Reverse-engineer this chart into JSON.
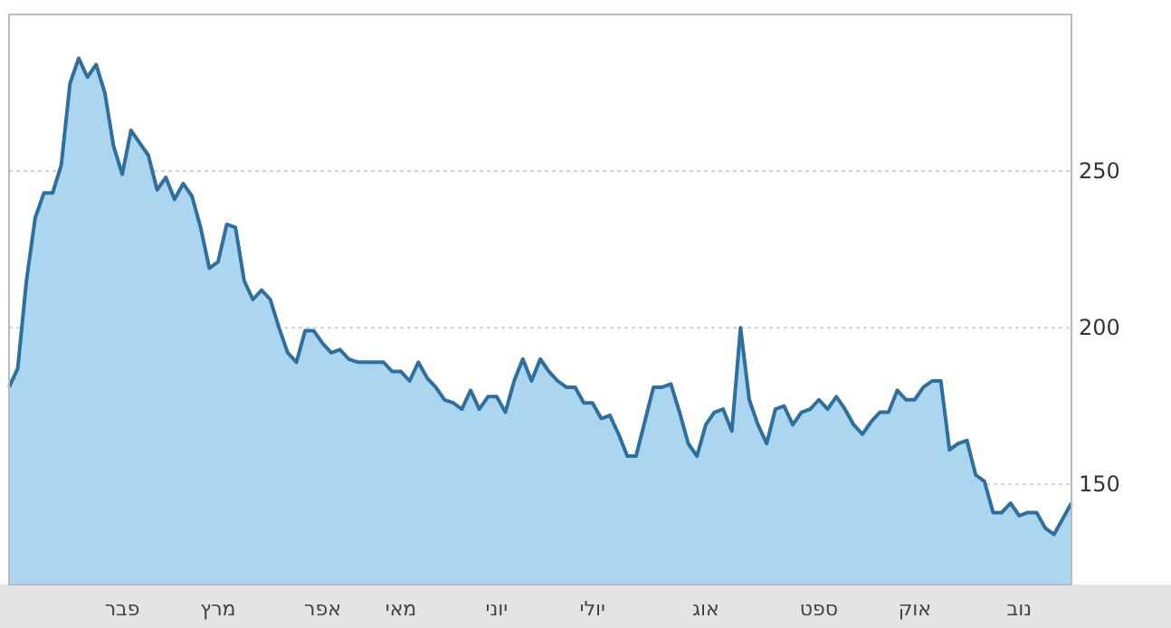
{
  "chart_data": {
    "type": "area",
    "categories": [
      null,
      null,
      null,
      null,
      null,
      null,
      null,
      null,
      null,
      null,
      null,
      null,
      null,
      "פבר",
      null,
      null,
      null,
      null,
      null,
      null,
      null,
      null,
      null,
      null,
      "מרץ",
      null,
      null,
      null,
      null,
      null,
      null,
      null,
      null,
      null,
      null,
      null,
      "אפר",
      null,
      null,
      null,
      null,
      null,
      null,
      null,
      null,
      "מאי",
      null,
      null,
      null,
      null,
      null,
      null,
      null,
      null,
      null,
      null,
      "יוני",
      null,
      null,
      null,
      null,
      null,
      null,
      null,
      null,
      null,
      null,
      "יולי",
      null,
      null,
      null,
      null,
      null,
      null,
      null,
      null,
      null,
      null,
      null,
      null,
      "אוג",
      null,
      null,
      null,
      null,
      null,
      null,
      null,
      null,
      null,
      null,
      null,
      null,
      "ספט",
      null,
      null,
      null,
      null,
      null,
      null,
      null,
      null,
      null,
      null,
      "אוק",
      null,
      null,
      null,
      null,
      null,
      null,
      null,
      null,
      null,
      null,
      null,
      "נוב",
      null,
      null,
      null,
      null,
      null,
      null
    ],
    "series": [
      {
        "color": "#2e6f9e",
        "values": [
          181,
          187,
          215,
          235,
          243,
          243,
          252,
          278,
          286,
          280,
          284,
          275,
          258,
          249,
          263,
          259,
          255,
          244,
          248,
          241,
          246,
          242,
          232,
          219,
          221,
          233,
          232,
          215,
          209,
          212,
          209,
          200,
          192,
          189,
          199,
          199,
          195,
          192,
          193,
          190,
          189,
          189,
          189,
          189,
          186,
          186,
          183,
          189,
          184,
          181,
          177,
          176,
          174,
          180,
          174,
          178,
          178,
          173,
          183,
          190,
          183,
          190,
          186,
          183,
          181,
          181,
          176,
          176,
          171,
          172,
          166,
          159,
          159,
          170,
          181,
          181,
          182,
          173,
          163,
          159,
          169,
          173,
          174,
          167,
          200,
          177,
          169,
          163,
          174,
          175,
          169,
          173,
          174,
          177,
          174,
          178,
          174,
          169,
          166,
          170,
          173,
          173,
          180,
          177,
          177,
          181,
          183,
          183,
          161,
          163,
          164,
          153,
          151,
          141,
          141,
          144,
          140,
          141,
          141,
          136,
          134,
          139,
          144
        ]
      }
    ],
    "ylim": [
      118,
      300
    ],
    "yticks": [
      150,
      200,
      250,
      {
        "value": 300,
        "label": null
      }
    ],
    "grid": "y",
    "line_style": "solid",
    "marker": "none"
  }
}
